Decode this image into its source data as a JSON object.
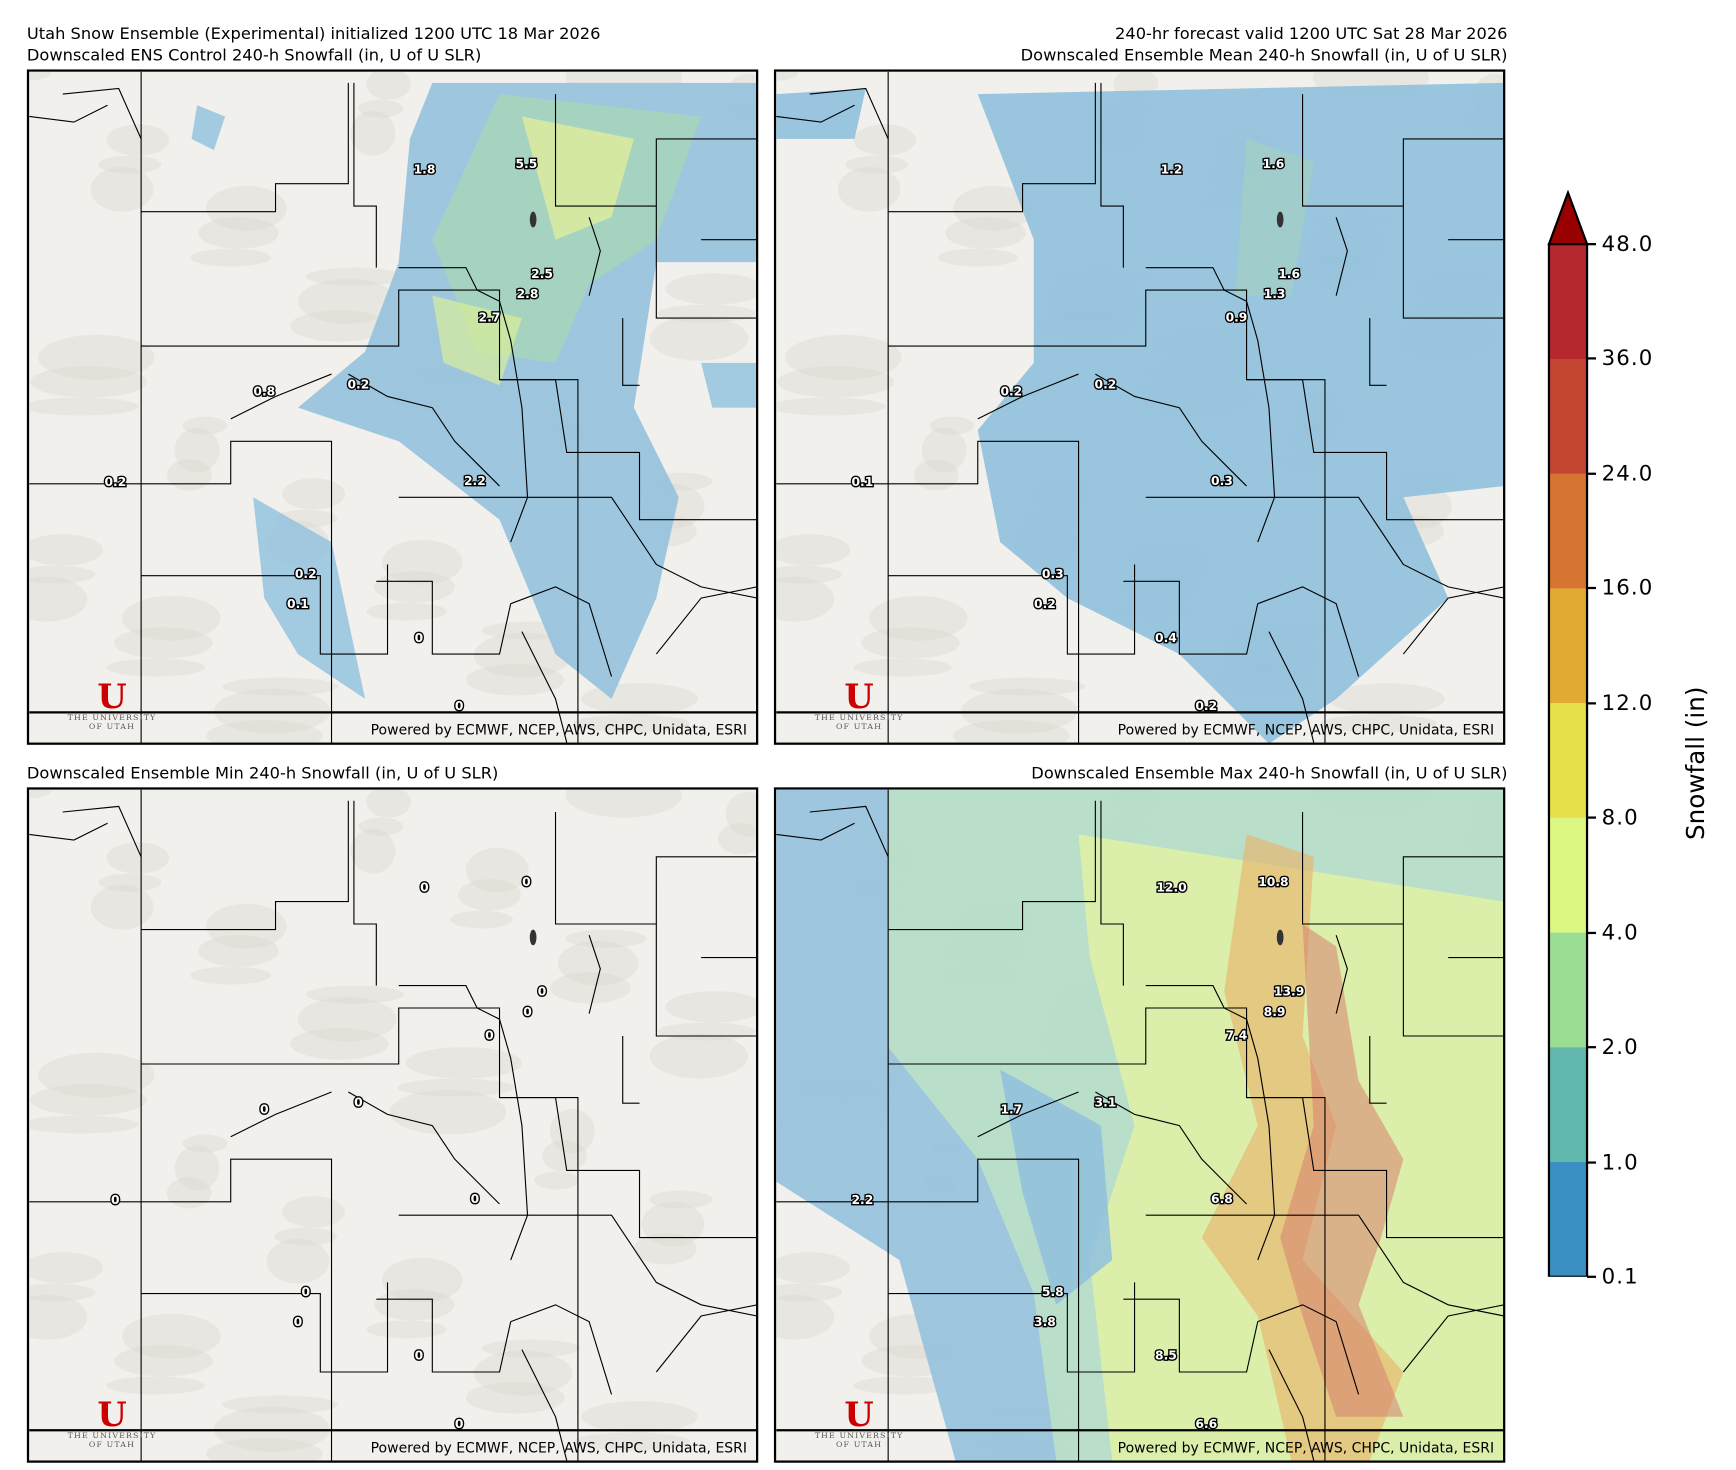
{
  "header": {
    "left_line1": "Utah Snow Ensemble (Experimental) initialized 1200 UTC 18 Mar 2026",
    "right_line1": "240-hr forecast valid 1200 UTC Sat 28 Mar 2026"
  },
  "panels": [
    {
      "title": "Downscaled ENS Control 240-h Snowfall (in, U of U SLR)",
      "labels": [
        "1.8",
        "5.5",
        "2.5",
        "2.8",
        "2.7",
        "0.8",
        "0.2",
        "2.2",
        "0.2",
        "0.2",
        "0.1",
        "0",
        "0"
      ],
      "fill_level": "control"
    },
    {
      "title": "Downscaled Ensemble Mean 240-h Snowfall (in, U of U SLR)",
      "labels": [
        "1.2",
        "1.6",
        "1.6",
        "1.3",
        "0.9",
        "0.2",
        "0.2",
        "0.3",
        "0.1",
        "0.3",
        "0.2",
        "0.4",
        "0.2"
      ],
      "fill_level": "mean"
    },
    {
      "title": "Downscaled Ensemble Min 240-h Snowfall (in, U of U SLR)",
      "labels": [
        "0",
        "0",
        "0",
        "0",
        "0",
        "0",
        "0",
        "0",
        "0",
        "0",
        "0",
        "0",
        "0"
      ],
      "fill_level": "min"
    },
    {
      "title": "Downscaled Ensemble Max 240-h Snowfall (in, U of U SLR)",
      "labels": [
        "12.0",
        "10.8",
        "13.9",
        "8.9",
        "7.4",
        "1.7",
        "3.1",
        "6.8",
        "2.2",
        "5.8",
        "3.8",
        "8.5",
        "6.6"
      ],
      "fill_level": "max"
    }
  ],
  "credit": "Powered by ECMWF, NCEP, AWS, CHPC, Unidata, ESRI",
  "logo": {
    "mark": "U",
    "text1": "THE UNIVERSITY",
    "text2": "OF UTAH"
  },
  "colorbar": {
    "title": "Snowfall (in)",
    "ticks": [
      "48.0",
      "36.0",
      "24.0",
      "16.0",
      "12.0",
      "8.0",
      "4.0",
      "2.0",
      "1.0",
      "0.1"
    ],
    "colors": [
      "#b5282f",
      "#c44532",
      "#d57531",
      "#e0aa33",
      "#e6e04c",
      "#dcf882",
      "#9ade94",
      "#63b8ae",
      "#3a8fc3"
    ],
    "extend_color": "#990000"
  }
}
